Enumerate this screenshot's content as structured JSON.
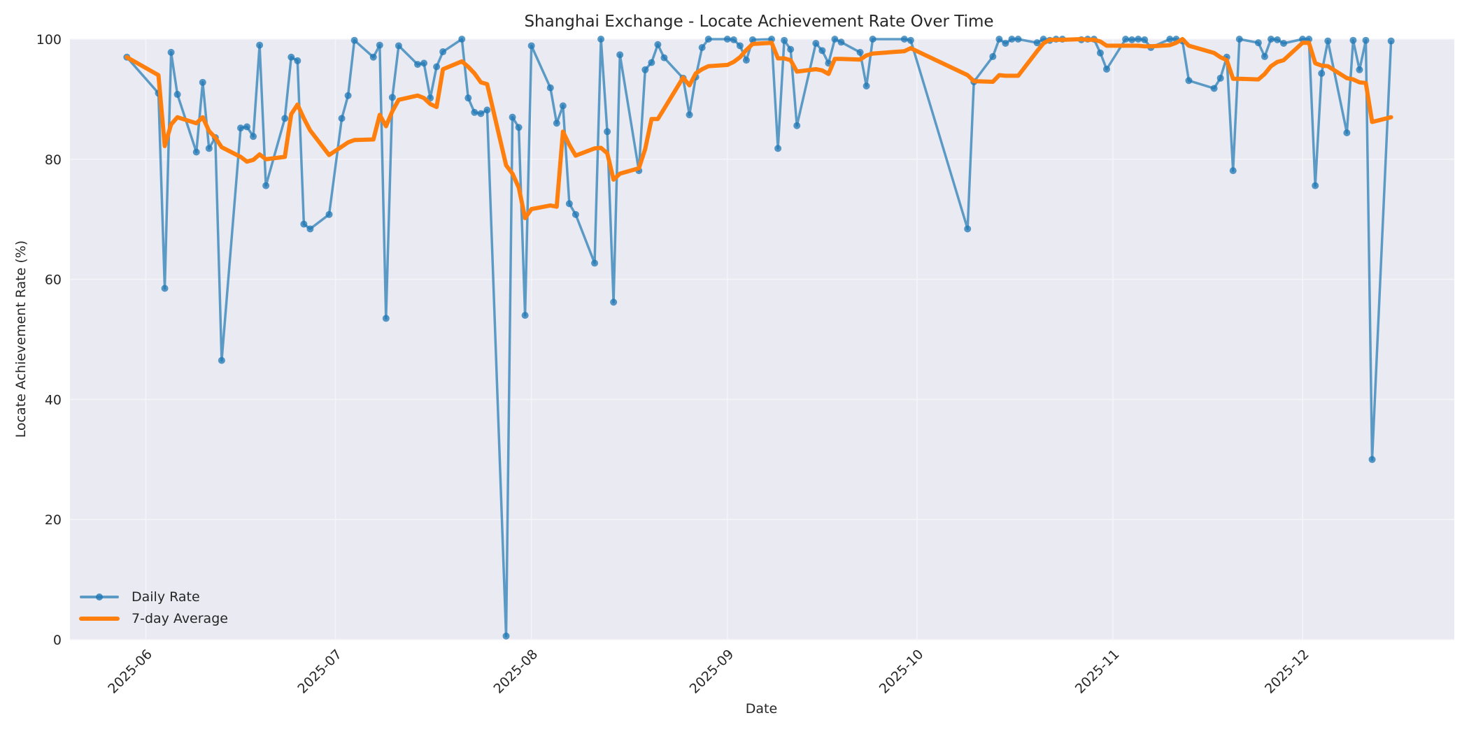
{
  "chart_data": {
    "type": "line",
    "title": "Shanghai Exchange - Locate Achievement Rate Over Time",
    "xlabel": "Date",
    "ylabel": "Locate Achievement Rate (%)",
    "ylim": [
      0,
      100
    ],
    "xlim": [
      "2025-05-20",
      "2025-12-25"
    ],
    "yticks": [
      0,
      20,
      40,
      60,
      80,
      100
    ],
    "xticks": [
      "2025-06",
      "2025-07",
      "2025-08",
      "2025-09",
      "2025-10",
      "2025-11",
      "2025-12"
    ],
    "xtick_dates": [
      "2025-06-01",
      "2025-07-01",
      "2025-08-01",
      "2025-09-01",
      "2025-10-01",
      "2025-11-01",
      "2025-12-01"
    ],
    "grid": true,
    "legend_position": "lower left",
    "series": [
      {
        "name": "Daily Rate",
        "color": "#1f77b4",
        "marker": "circle",
        "points": [
          [
            "2025-05-29",
            97.0
          ],
          [
            "2025-06-03",
            91.0
          ],
          [
            "2025-06-04",
            58.5
          ],
          [
            "2025-06-05",
            97.8
          ],
          [
            "2025-06-06",
            90.8
          ],
          [
            "2025-06-09",
            81.2
          ],
          [
            "2025-06-10",
            92.8
          ],
          [
            "2025-06-11",
            81.8
          ],
          [
            "2025-06-12",
            83.6
          ],
          [
            "2025-06-13",
            46.5
          ],
          [
            "2025-06-16",
            85.2
          ],
          [
            "2025-06-17",
            85.4
          ],
          [
            "2025-06-18",
            83.8
          ],
          [
            "2025-06-19",
            99.0
          ],
          [
            "2025-06-20",
            75.6
          ],
          [
            "2025-06-23",
            86.8
          ],
          [
            "2025-06-24",
            97.0
          ],
          [
            "2025-06-25",
            96.4
          ],
          [
            "2025-06-26",
            69.2
          ],
          [
            "2025-06-27",
            68.4
          ],
          [
            "2025-06-30",
            70.8
          ],
          [
            "2025-07-02",
            86.8
          ],
          [
            "2025-07-03",
            90.6
          ],
          [
            "2025-07-04",
            99.8
          ],
          [
            "2025-07-07",
            97.0
          ],
          [
            "2025-07-08",
            99.0
          ],
          [
            "2025-07-09",
            53.5
          ],
          [
            "2025-07-10",
            90.3
          ],
          [
            "2025-07-11",
            98.9
          ],
          [
            "2025-07-14",
            95.8
          ],
          [
            "2025-07-15",
            96.0
          ],
          [
            "2025-07-16",
            90.2
          ],
          [
            "2025-07-17",
            95.4
          ],
          [
            "2025-07-18",
            97.9
          ],
          [
            "2025-07-21",
            100.0
          ],
          [
            "2025-07-22",
            90.2
          ],
          [
            "2025-07-23",
            87.8
          ],
          [
            "2025-07-24",
            87.6
          ],
          [
            "2025-07-25",
            88.2
          ],
          [
            "2025-07-28",
            0.6
          ],
          [
            "2025-07-29",
            87.0
          ],
          [
            "2025-07-30",
            85.3
          ],
          [
            "2025-07-31",
            54.0
          ],
          [
            "2025-08-01",
            98.9
          ],
          [
            "2025-08-04",
            91.9
          ],
          [
            "2025-08-05",
            86.0
          ],
          [
            "2025-08-06",
            88.9
          ],
          [
            "2025-08-07",
            72.6
          ],
          [
            "2025-08-08",
            70.8
          ],
          [
            "2025-08-11",
            62.7
          ],
          [
            "2025-08-12",
            100.0
          ],
          [
            "2025-08-13",
            84.6
          ],
          [
            "2025-08-14",
            56.2
          ],
          [
            "2025-08-15",
            97.4
          ],
          [
            "2025-08-18",
            78.1
          ],
          [
            "2025-08-19",
            94.9
          ],
          [
            "2025-08-20",
            96.1
          ],
          [
            "2025-08-21",
            99.1
          ],
          [
            "2025-08-22",
            96.9
          ],
          [
            "2025-08-25",
            93.5
          ],
          [
            "2025-08-26",
            87.4
          ],
          [
            "2025-08-27",
            93.7
          ],
          [
            "2025-08-28",
            98.6
          ],
          [
            "2025-08-29",
            100.0
          ],
          [
            "2025-09-01",
            100.0
          ],
          [
            "2025-09-02",
            99.9
          ],
          [
            "2025-09-03",
            98.9
          ],
          [
            "2025-09-04",
            96.5
          ],
          [
            "2025-09-05",
            99.9
          ],
          [
            "2025-09-08",
            100.0
          ],
          [
            "2025-09-09",
            81.8
          ],
          [
            "2025-09-10",
            99.8
          ],
          [
            "2025-09-11",
            98.3
          ],
          [
            "2025-09-12",
            85.6
          ],
          [
            "2025-09-15",
            99.3
          ],
          [
            "2025-09-16",
            98.1
          ],
          [
            "2025-09-17",
            96.0
          ],
          [
            "2025-09-18",
            100.0
          ],
          [
            "2025-09-19",
            99.5
          ],
          [
            "2025-09-22",
            97.8
          ],
          [
            "2025-09-23",
            92.2
          ],
          [
            "2025-09-24",
            100.0
          ],
          [
            "2025-09-29",
            100.0
          ],
          [
            "2025-09-30",
            99.8
          ],
          [
            "2025-10-09",
            68.4
          ],
          [
            "2025-10-10",
            92.9
          ],
          [
            "2025-10-13",
            97.1
          ],
          [
            "2025-10-14",
            100.0
          ],
          [
            "2025-10-15",
            99.3
          ],
          [
            "2025-10-16",
            100.0
          ],
          [
            "2025-10-17",
            100.0
          ],
          [
            "2025-10-20",
            99.4
          ],
          [
            "2025-10-21",
            100.0
          ],
          [
            "2025-10-22",
            99.8
          ],
          [
            "2025-10-23",
            100.0
          ],
          [
            "2025-10-24",
            100.0
          ],
          [
            "2025-10-27",
            99.9
          ],
          [
            "2025-10-28",
            100.0
          ],
          [
            "2025-10-29",
            100.0
          ],
          [
            "2025-10-30",
            97.7
          ],
          [
            "2025-10-31",
            95.0
          ],
          [
            "2025-11-03",
            100.0
          ],
          [
            "2025-11-04",
            99.9
          ],
          [
            "2025-11-05",
            100.0
          ],
          [
            "2025-11-06",
            99.9
          ],
          [
            "2025-11-07",
            98.6
          ],
          [
            "2025-11-10",
            100.0
          ],
          [
            "2025-11-11",
            100.0
          ],
          [
            "2025-11-12",
            99.7
          ],
          [
            "2025-11-13",
            93.1
          ],
          [
            "2025-11-17",
            91.8
          ],
          [
            "2025-11-18",
            93.5
          ],
          [
            "2025-11-19",
            97.0
          ],
          [
            "2025-11-20",
            78.1
          ],
          [
            "2025-11-21",
            100.0
          ],
          [
            "2025-11-24",
            99.4
          ],
          [
            "2025-11-25",
            97.1
          ],
          [
            "2025-11-26",
            100.0
          ],
          [
            "2025-11-27",
            99.9
          ],
          [
            "2025-11-28",
            99.3
          ],
          [
            "2025-12-01",
            100.0
          ],
          [
            "2025-12-02",
            100.0
          ],
          [
            "2025-12-03",
            75.6
          ],
          [
            "2025-12-04",
            94.3
          ],
          [
            "2025-12-05",
            99.7
          ],
          [
            "2025-12-08",
            84.4
          ],
          [
            "2025-12-09",
            99.8
          ],
          [
            "2025-12-10",
            94.9
          ],
          [
            "2025-12-11",
            99.8
          ],
          [
            "2025-12-12",
            30.0
          ],
          [
            "2025-12-15",
            99.7
          ]
        ]
      },
      {
        "name": "7-day Average",
        "color": "#ff7f0e",
        "marker": "none",
        "points": [
          [
            "2025-05-29",
            97.0
          ],
          [
            "2025-06-03",
            94.0
          ],
          [
            "2025-06-04",
            82.2
          ],
          [
            "2025-06-05",
            85.8
          ],
          [
            "2025-06-06",
            87.0
          ],
          [
            "2025-06-09",
            86.0
          ],
          [
            "2025-06-10",
            87.0
          ],
          [
            "2025-06-11",
            84.7
          ],
          [
            "2025-06-12",
            83.6
          ],
          [
            "2025-06-13",
            82.0
          ],
          [
            "2025-06-16",
            80.4
          ],
          [
            "2025-06-17",
            79.6
          ],
          [
            "2025-06-18",
            79.9
          ],
          [
            "2025-06-19",
            80.8
          ],
          [
            "2025-06-20",
            80.0
          ],
          [
            "2025-06-23",
            80.4
          ],
          [
            "2025-06-24",
            87.5
          ],
          [
            "2025-06-25",
            89.1
          ],
          [
            "2025-06-26",
            86.8
          ],
          [
            "2025-06-27",
            84.8
          ],
          [
            "2025-06-30",
            80.7
          ],
          [
            "2025-07-02",
            82.1
          ],
          [
            "2025-07-03",
            82.8
          ],
          [
            "2025-07-04",
            83.2
          ],
          [
            "2025-07-07",
            83.3
          ],
          [
            "2025-07-08",
            87.4
          ],
          [
            "2025-07-09",
            85.5
          ],
          [
            "2025-07-10",
            88.0
          ],
          [
            "2025-07-11",
            89.9
          ],
          [
            "2025-07-14",
            90.6
          ],
          [
            "2025-07-15",
            90.2
          ],
          [
            "2025-07-16",
            89.2
          ],
          [
            "2025-07-17",
            88.7
          ],
          [
            "2025-07-18",
            95.0
          ],
          [
            "2025-07-21",
            96.3
          ],
          [
            "2025-07-22",
            95.4
          ],
          [
            "2025-07-23",
            94.3
          ],
          [
            "2025-07-24",
            92.8
          ],
          [
            "2025-07-25",
            92.5
          ],
          [
            "2025-07-28",
            79.0
          ],
          [
            "2025-07-29",
            77.6
          ],
          [
            "2025-07-30",
            75.3
          ],
          [
            "2025-07-31",
            70.2
          ],
          [
            "2025-08-01",
            71.7
          ],
          [
            "2025-08-04",
            72.3
          ],
          [
            "2025-08-05",
            72.1
          ],
          [
            "2025-08-06",
            84.6
          ],
          [
            "2025-08-07",
            82.4
          ],
          [
            "2025-08-08",
            80.6
          ],
          [
            "2025-08-11",
            81.8
          ],
          [
            "2025-08-12",
            81.9
          ],
          [
            "2025-08-13",
            81.0
          ],
          [
            "2025-08-14",
            76.6
          ],
          [
            "2025-08-15",
            77.6
          ],
          [
            "2025-08-18",
            78.5
          ],
          [
            "2025-08-19",
            81.7
          ],
          [
            "2025-08-20",
            86.7
          ],
          [
            "2025-08-21",
            86.7
          ],
          [
            "2025-08-22",
            88.4
          ],
          [
            "2025-08-25",
            93.6
          ],
          [
            "2025-08-26",
            92.3
          ],
          [
            "2025-08-27",
            94.3
          ],
          [
            "2025-08-28",
            95.0
          ],
          [
            "2025-08-29",
            95.5
          ],
          [
            "2025-09-01",
            95.7
          ],
          [
            "2025-09-02",
            96.2
          ],
          [
            "2025-09-03",
            97.0
          ],
          [
            "2025-09-04",
            98.2
          ],
          [
            "2025-09-05",
            99.2
          ],
          [
            "2025-09-08",
            99.4
          ],
          [
            "2025-09-09",
            96.8
          ],
          [
            "2025-09-10",
            96.8
          ],
          [
            "2025-09-11",
            96.5
          ],
          [
            "2025-09-12",
            94.6
          ],
          [
            "2025-09-15",
            95.0
          ],
          [
            "2025-09-16",
            94.8
          ],
          [
            "2025-09-17",
            94.2
          ],
          [
            "2025-09-18",
            96.7
          ],
          [
            "2025-09-19",
            96.7
          ],
          [
            "2025-09-22",
            96.6
          ],
          [
            "2025-09-23",
            97.3
          ],
          [
            "2025-09-24",
            97.6
          ],
          [
            "2025-09-29",
            98.0
          ],
          [
            "2025-09-30",
            98.5
          ],
          [
            "2025-10-09",
            94.0
          ],
          [
            "2025-10-10",
            93.0
          ],
          [
            "2025-10-13",
            92.9
          ],
          [
            "2025-10-14",
            94.0
          ],
          [
            "2025-10-15",
            93.9
          ],
          [
            "2025-10-16",
            93.9
          ],
          [
            "2025-10-17",
            93.9
          ],
          [
            "2025-10-20",
            98.0
          ],
          [
            "2025-10-21",
            99.3
          ],
          [
            "2025-10-22",
            99.9
          ],
          [
            "2025-10-23",
            99.9
          ],
          [
            "2025-10-24",
            99.9
          ],
          [
            "2025-10-27",
            100.0
          ],
          [
            "2025-10-28",
            99.9
          ],
          [
            "2025-10-29",
            99.9
          ],
          [
            "2025-10-30",
            99.6
          ],
          [
            "2025-10-31",
            98.9
          ],
          [
            "2025-11-03",
            98.9
          ],
          [
            "2025-11-04",
            98.9
          ],
          [
            "2025-11-05",
            98.9
          ],
          [
            "2025-11-06",
            98.8
          ],
          [
            "2025-11-07",
            98.8
          ],
          [
            "2025-11-10",
            99.0
          ],
          [
            "2025-11-11",
            99.4
          ],
          [
            "2025-11-12",
            100.0
          ],
          [
            "2025-11-13",
            98.9
          ],
          [
            "2025-11-17",
            97.7
          ],
          [
            "2025-11-18",
            97.0
          ],
          [
            "2025-11-19",
            96.5
          ],
          [
            "2025-11-20",
            93.4
          ],
          [
            "2025-11-21",
            93.4
          ],
          [
            "2025-11-24",
            93.3
          ],
          [
            "2025-11-25",
            94.2
          ],
          [
            "2025-11-26",
            95.5
          ],
          [
            "2025-11-27",
            96.2
          ],
          [
            "2025-11-28",
            96.5
          ],
          [
            "2025-12-01",
            99.4
          ],
          [
            "2025-12-02",
            99.4
          ],
          [
            "2025-12-03",
            96.0
          ],
          [
            "2025-12-04",
            95.6
          ],
          [
            "2025-12-05",
            95.5
          ],
          [
            "2025-12-08",
            93.5
          ],
          [
            "2025-12-09",
            93.3
          ],
          [
            "2025-12-10",
            92.8
          ],
          [
            "2025-12-11",
            92.7
          ],
          [
            "2025-12-12",
            86.2
          ],
          [
            "2025-12-15",
            87.0
          ]
        ]
      }
    ]
  },
  "legend": {
    "items": [
      {
        "label": "Daily Rate",
        "color": "#1f77b4"
      },
      {
        "label": "7-day Average",
        "color": "#ff7f0e"
      }
    ]
  },
  "colors": {
    "plot_background": "#eaeaf2",
    "grid": "#f4f4f8",
    "text": "#262626"
  }
}
